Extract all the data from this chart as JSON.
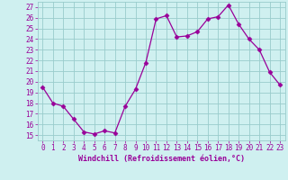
{
  "x": [
    0,
    1,
    2,
    3,
    4,
    5,
    6,
    7,
    8,
    9,
    10,
    11,
    12,
    13,
    14,
    15,
    16,
    17,
    18,
    19,
    20,
    21,
    22,
    23
  ],
  "y": [
    19.5,
    18.0,
    17.7,
    16.5,
    15.3,
    15.1,
    15.4,
    15.2,
    17.7,
    19.3,
    21.8,
    25.9,
    26.2,
    24.2,
    24.3,
    24.7,
    25.9,
    26.1,
    27.2,
    25.4,
    24.0,
    23.0,
    20.9,
    19.7
  ],
  "line_color": "#990099",
  "marker": "D",
  "marker_size": 2.5,
  "bg_color": "#cff0f0",
  "grid_color": "#99cccc",
  "xlabel": "Windchill (Refroidissement éolien,°C)",
  "ylabel_ticks": [
    15,
    16,
    17,
    18,
    19,
    20,
    21,
    22,
    23,
    24,
    25,
    26,
    27
  ],
  "xlim": [
    -0.5,
    23.5
  ],
  "ylim": [
    14.5,
    27.5
  ],
  "tick_fontsize": 5.5,
  "xlabel_fontsize": 6.0
}
